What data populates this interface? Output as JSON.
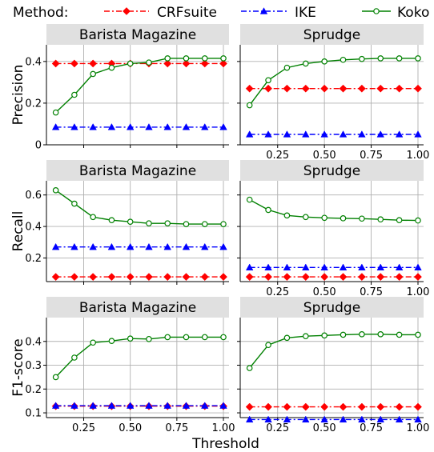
{
  "legend": {
    "title": "Method:",
    "items": [
      {
        "name": "CRFsuite",
        "color": "#ff0000",
        "marker": "diamond",
        "dash": "dashdot"
      },
      {
        "name": "IKE",
        "color": "#0000ff",
        "marker": "triangle",
        "dash": "dashdot"
      },
      {
        "name": "Koko",
        "color": "#008000",
        "marker": "circle-open",
        "dash": "solid"
      }
    ]
  },
  "xlabel": "Threshold",
  "chart_data": [
    {
      "type": "line",
      "row": 0,
      "col": 0,
      "title": "Barista Magazine",
      "ylabel": "Precision",
      "xlim": [
        0.05,
        1.03
      ],
      "ylim": [
        0,
        0.48
      ],
      "xticks": [
        0.25,
        0.5,
        0.75,
        1.0
      ],
      "xtick_labels": [],
      "yticks": [
        0,
        0.2,
        0.4
      ],
      "ytick_labels": [
        "0",
        "0.2",
        "0.4"
      ],
      "x": [
        0.1,
        0.2,
        0.3,
        0.4,
        0.5,
        0.6,
        0.7,
        0.8,
        0.9,
        1.0
      ],
      "series": [
        {
          "name": "CRFsuite",
          "values": [
            0.39,
            0.39,
            0.39,
            0.39,
            0.39,
            0.39,
            0.39,
            0.39,
            0.39,
            0.39
          ]
        },
        {
          "name": "IKE",
          "values": [
            0.085,
            0.085,
            0.085,
            0.085,
            0.085,
            0.085,
            0.085,
            0.085,
            0.085,
            0.085
          ]
        },
        {
          "name": "Koko",
          "values": [
            0.155,
            0.24,
            0.34,
            0.37,
            0.39,
            0.395,
            0.415,
            0.415,
            0.415,
            0.415
          ]
        }
      ]
    },
    {
      "type": "line",
      "row": 0,
      "col": 1,
      "title": "Sprudge",
      "ylabel": "",
      "xlim": [
        0.05,
        1.03
      ],
      "ylim": [
        0,
        0.48
      ],
      "xticks": [
        0.25,
        0.5,
        0.75,
        1.0
      ],
      "xtick_labels": [
        "0.25",
        "0.50",
        "0.75",
        "1.00"
      ],
      "yticks": [
        0,
        0.2,
        0.4
      ],
      "ytick_labels": [],
      "x": [
        0.1,
        0.2,
        0.3,
        0.4,
        0.5,
        0.6,
        0.7,
        0.8,
        0.9,
        1.0
      ],
      "series": [
        {
          "name": "CRFsuite",
          "values": [
            0.27,
            0.27,
            0.27,
            0.27,
            0.27,
            0.27,
            0.27,
            0.27,
            0.27,
            0.27
          ]
        },
        {
          "name": "IKE",
          "values": [
            0.05,
            0.05,
            0.05,
            0.05,
            0.05,
            0.05,
            0.05,
            0.05,
            0.05,
            0.05
          ]
        },
        {
          "name": "Koko",
          "values": [
            0.19,
            0.31,
            0.37,
            0.39,
            0.4,
            0.408,
            0.412,
            0.415,
            0.415,
            0.415
          ]
        }
      ]
    },
    {
      "type": "line",
      "row": 1,
      "col": 0,
      "title": "Barista Magazine",
      "ylabel": "Recall",
      "xlim": [
        0.05,
        1.03
      ],
      "ylim": [
        0.05,
        0.69
      ],
      "xticks": [
        0.25,
        0.5,
        0.75,
        1.0
      ],
      "xtick_labels": [],
      "yticks": [
        0.2,
        0.4,
        0.6
      ],
      "ytick_labels": [
        "0.2",
        "0.4",
        "0.6"
      ],
      "x": [
        0.1,
        0.2,
        0.3,
        0.4,
        0.5,
        0.6,
        0.7,
        0.8,
        0.9,
        1.0
      ],
      "series": [
        {
          "name": "CRFsuite",
          "values": [
            0.08,
            0.08,
            0.08,
            0.08,
            0.08,
            0.08,
            0.08,
            0.08,
            0.08,
            0.08
          ]
        },
        {
          "name": "IKE",
          "values": [
            0.27,
            0.27,
            0.27,
            0.27,
            0.27,
            0.27,
            0.27,
            0.27,
            0.27,
            0.27
          ]
        },
        {
          "name": "Koko",
          "values": [
            0.63,
            0.545,
            0.46,
            0.44,
            0.43,
            0.42,
            0.42,
            0.415,
            0.415,
            0.415
          ]
        }
      ]
    },
    {
      "type": "line",
      "row": 1,
      "col": 1,
      "title": "Sprudge",
      "ylabel": "",
      "xlim": [
        0.05,
        1.03
      ],
      "ylim": [
        0.05,
        0.69
      ],
      "xticks": [
        0.25,
        0.5,
        0.75,
        1.0
      ],
      "xtick_labels": [
        "0.25",
        "0.50",
        "0.75",
        "1.00"
      ],
      "yticks": [
        0.2,
        0.4,
        0.6
      ],
      "ytick_labels": [],
      "x": [
        0.1,
        0.2,
        0.3,
        0.4,
        0.5,
        0.6,
        0.7,
        0.8,
        0.9,
        1.0
      ],
      "series": [
        {
          "name": "CRFsuite",
          "values": [
            0.08,
            0.08,
            0.08,
            0.08,
            0.08,
            0.08,
            0.08,
            0.08,
            0.08,
            0.08
          ]
        },
        {
          "name": "IKE",
          "values": [
            0.14,
            0.14,
            0.14,
            0.14,
            0.14,
            0.14,
            0.14,
            0.14,
            0.14,
            0.14
          ]
        },
        {
          "name": "Koko",
          "values": [
            0.57,
            0.505,
            0.47,
            0.46,
            0.455,
            0.452,
            0.45,
            0.445,
            0.44,
            0.438
          ]
        }
      ]
    },
    {
      "type": "line",
      "row": 2,
      "col": 0,
      "title": "Barista Magazine",
      "ylabel": "F1-score",
      "xlim": [
        0.05,
        1.03
      ],
      "ylim": [
        0.08,
        0.5
      ],
      "xticks": [
        0.25,
        0.5,
        0.75,
        1.0
      ],
      "xtick_labels": [
        "0.25",
        "0.50",
        "0.75",
        "1.00"
      ],
      "yticks": [
        0.1,
        0.2,
        0.3,
        0.4
      ],
      "ytick_labels": [
        "0.1",
        "0.2",
        "0.3",
        "0.4"
      ],
      "x": [
        0.1,
        0.2,
        0.3,
        0.4,
        0.5,
        0.6,
        0.7,
        0.8,
        0.9,
        1.0
      ],
      "series": [
        {
          "name": "CRFsuite",
          "values": [
            0.128,
            0.128,
            0.128,
            0.128,
            0.128,
            0.128,
            0.128,
            0.128,
            0.128,
            0.128
          ]
        },
        {
          "name": "IKE",
          "values": [
            0.13,
            0.13,
            0.13,
            0.13,
            0.13,
            0.13,
            0.13,
            0.13,
            0.13,
            0.13
          ]
        },
        {
          "name": "Koko",
          "values": [
            0.25,
            0.332,
            0.395,
            0.402,
            0.412,
            0.41,
            0.418,
            0.418,
            0.418,
            0.418
          ]
        }
      ]
    },
    {
      "type": "line",
      "row": 2,
      "col": 1,
      "title": "Sprudge",
      "ylabel": "",
      "xlim": [
        0.05,
        1.03
      ],
      "ylim": [
        0.08,
        0.5
      ],
      "xticks": [
        0.25,
        0.5,
        0.75,
        1.0
      ],
      "xtick_labels": [
        "0.25",
        "0.50",
        "0.75",
        "1.00"
      ],
      "yticks": [
        0.1,
        0.2,
        0.3,
        0.4
      ],
      "ytick_labels": [],
      "x": [
        0.1,
        0.2,
        0.3,
        0.4,
        0.5,
        0.6,
        0.7,
        0.8,
        0.9,
        1.0
      ],
      "series": [
        {
          "name": "CRFsuite",
          "values": [
            0.125,
            0.125,
            0.125,
            0.125,
            0.125,
            0.125,
            0.125,
            0.125,
            0.125,
            0.125
          ]
        },
        {
          "name": "IKE",
          "values": [
            0.072,
            0.072,
            0.072,
            0.072,
            0.072,
            0.072,
            0.072,
            0.072,
            0.072,
            0.072
          ]
        },
        {
          "name": "Koko",
          "values": [
            0.288,
            0.385,
            0.415,
            0.422,
            0.425,
            0.428,
            0.43,
            0.43,
            0.428,
            0.428
          ]
        }
      ]
    }
  ]
}
